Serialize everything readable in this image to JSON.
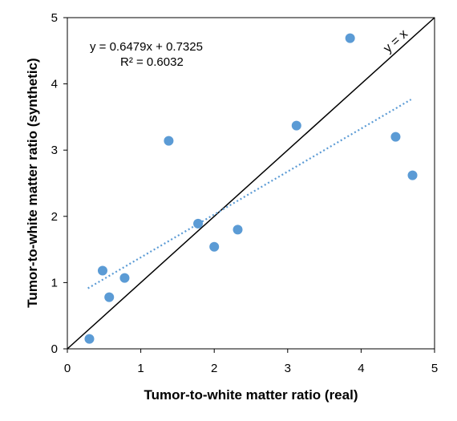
{
  "chart_data": {
    "type": "scatter",
    "xlabel": "Tumor-to-white matter ratio (real)",
    "ylabel": "Tumor-to-white matter ratio (synthetic)",
    "xlim": [
      0,
      5
    ],
    "ylim": [
      0,
      5
    ],
    "xticks": [
      "0",
      "1",
      "2",
      "3",
      "4",
      "5"
    ],
    "yticks": [
      "0",
      "1",
      "2",
      "3",
      "4",
      "5"
    ],
    "grid": false,
    "point_color": "#5b9bd5",
    "trend_color": "#5b9bd5",
    "points": [
      {
        "x": 0.3,
        "y": 0.15
      },
      {
        "x": 0.48,
        "y": 1.18
      },
      {
        "x": 0.57,
        "y": 0.78
      },
      {
        "x": 0.78,
        "y": 1.07
      },
      {
        "x": 1.38,
        "y": 3.14
      },
      {
        "x": 1.78,
        "y": 1.89
      },
      {
        "x": 2.0,
        "y": 1.54
      },
      {
        "x": 2.32,
        "y": 1.8
      },
      {
        "x": 3.12,
        "y": 3.37
      },
      {
        "x": 3.85,
        "y": 4.69
      },
      {
        "x": 4.47,
        "y": 3.2
      },
      {
        "x": 4.7,
        "y": 2.62
      }
    ],
    "trendline": {
      "slope": 0.6479,
      "intercept": 0.7325,
      "x_range": [
        0.28,
        4.68
      ],
      "equation_label": "y = 0.6479x + 0.7325",
      "r2_label": "R² = 0.6032"
    },
    "identity_line": {
      "label": "y = x"
    }
  }
}
